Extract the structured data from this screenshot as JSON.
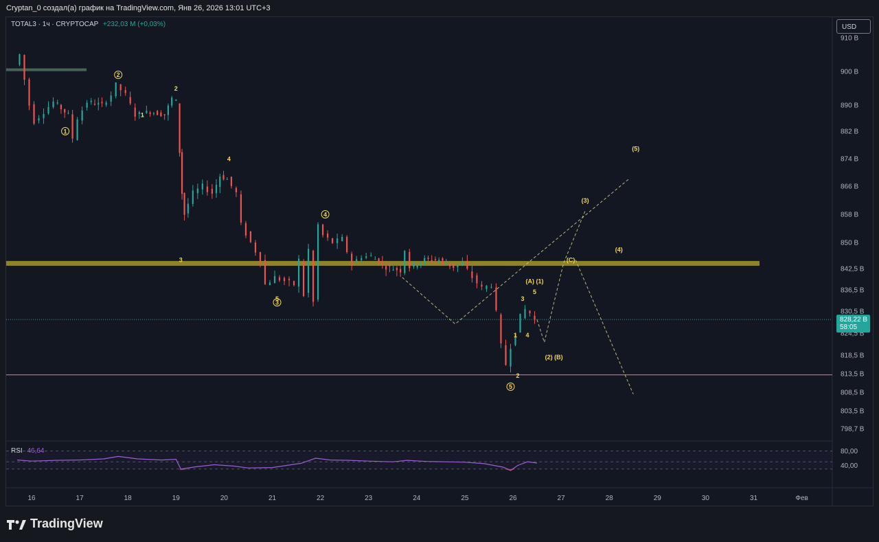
{
  "header": {
    "caption": "Cryptan_0 создал(а) график на TradingView.com, Янв 26, 2026 13:01 UTC+3"
  },
  "symbol": {
    "name": "TOTAL3 · 1ч · CRYPTOCAP",
    "change": "+232,03 M (+0,03%)"
  },
  "currency_button": "USD",
  "rsi": {
    "label": "RSI",
    "value": "46,64",
    "levels": [
      "80,00",
      "40,00"
    ]
  },
  "footer": {
    "brand": "TradingView"
  },
  "colors": {
    "up": "#26a69a",
    "down": "#ef5350",
    "zone": "#a3962d",
    "support": "#e05d6f",
    "rsi": "#9c5fd1",
    "wave_label": "#f0d65a"
  },
  "chart_data": {
    "type": "candlestick",
    "y_unit": "B",
    "y_ticks": [
      "910 B",
      "900 B",
      "890 B",
      "882 B",
      "874 B",
      "866 B",
      "858 B",
      "850 B",
      "842,5 B",
      "836,5 B",
      "830,5 B",
      "824,5 B",
      "818,5 B",
      "813,5 B",
      "808,5 B",
      "803,5 B",
      "798,7 B"
    ],
    "y_tick_values": [
      910,
      900,
      890,
      882,
      874,
      866,
      858,
      850,
      842.5,
      836.5,
      830.5,
      824.5,
      818.5,
      813.5,
      808.5,
      803.5,
      798.7
    ],
    "x_ticks": [
      "16",
      "17",
      "18",
      "19",
      "20",
      "21",
      "22",
      "23",
      "24",
      "25",
      "26",
      "27",
      "28",
      "29",
      "30",
      "31",
      "Фев"
    ],
    "last_price": {
      "value": "828,22 B",
      "countdown": "58:05",
      "price": 828.22
    },
    "resistance_zone": {
      "price": 844
    },
    "support_line": {
      "price": 813.2
    },
    "price_path": [
      [
        15.7,
        902
      ],
      [
        15.8,
        905
      ],
      [
        16.0,
        890
      ],
      [
        16.1,
        885
      ],
      [
        16.3,
        888
      ],
      [
        16.5,
        891
      ],
      [
        16.8,
        887
      ],
      [
        16.9,
        880
      ],
      [
        17.0,
        886
      ],
      [
        17.2,
        891
      ],
      [
        17.5,
        890
      ],
      [
        17.7,
        893
      ],
      [
        17.8,
        896
      ],
      [
        18.0,
        893
      ],
      [
        18.2,
        887
      ],
      [
        18.5,
        888
      ],
      [
        18.8,
        887
      ],
      [
        18.95,
        892
      ],
      [
        19.05,
        891
      ],
      [
        19.1,
        876
      ],
      [
        19.15,
        864
      ],
      [
        19.2,
        858
      ],
      [
        19.4,
        864
      ],
      [
        19.6,
        866
      ],
      [
        19.8,
        864
      ],
      [
        19.95,
        869
      ],
      [
        20.1,
        868
      ],
      [
        20.3,
        864
      ],
      [
        20.4,
        855
      ],
      [
        20.6,
        850
      ],
      [
        20.8,
        845
      ],
      [
        20.9,
        838
      ],
      [
        21.1,
        840
      ],
      [
        21.3,
        839
      ],
      [
        21.5,
        838
      ],
      [
        21.6,
        845
      ],
      [
        21.7,
        835
      ],
      [
        21.8,
        848
      ],
      [
        21.9,
        833
      ],
      [
        22.0,
        855
      ],
      [
        22.1,
        852
      ],
      [
        22.3,
        850
      ],
      [
        22.5,
        851
      ],
      [
        22.7,
        844
      ],
      [
        22.9,
        846
      ],
      [
        23.1,
        846
      ],
      [
        23.4,
        843
      ],
      [
        23.7,
        842
      ],
      [
        23.8,
        848
      ],
      [
        23.9,
        843
      ],
      [
        24.2,
        845
      ],
      [
        24.5,
        845
      ],
      [
        24.8,
        843
      ],
      [
        25.0,
        844
      ],
      [
        25.2,
        840
      ],
      [
        25.4,
        837
      ],
      [
        25.6,
        838
      ],
      [
        25.7,
        830
      ],
      [
        25.8,
        821
      ],
      [
        25.9,
        816
      ],
      [
        26.0,
        821
      ],
      [
        26.1,
        825
      ],
      [
        26.2,
        829
      ],
      [
        26.3,
        831
      ],
      [
        26.4,
        830
      ],
      [
        26.5,
        828.2
      ]
    ],
    "forecast_paths": [
      [
        [
          23.7,
          840
        ],
        [
          24.8,
          827
        ],
        [
          26.3,
          844
        ],
        [
          28.4,
          868
        ]
      ],
      [
        [
          26.5,
          828.2
        ],
        [
          26.65,
          822
        ],
        [
          27.05,
          844
        ],
        [
          27.5,
          859
        ]
      ],
      [
        [
          27.3,
          845
        ],
        [
          28.5,
          808
        ]
      ]
    ],
    "wave_labels": [
      {
        "text": "1",
        "x": 16.7,
        "price": 882,
        "circled": true
      },
      {
        "text": "2",
        "x": 17.8,
        "price": 899,
        "circled": true
      },
      {
        "text": "3",
        "x": 21.1,
        "price": 833,
        "circled": true
      },
      {
        "text": "4",
        "x": 22.1,
        "price": 858,
        "circled": true
      },
      {
        "text": "5",
        "x": 25.95,
        "price": 810,
        "circled": true
      },
      {
        "text": "1",
        "x": 18.3,
        "price": 887,
        "circled": false
      },
      {
        "text": "2",
        "x": 19.0,
        "price": 895,
        "circled": false
      },
      {
        "text": "3",
        "x": 19.1,
        "price": 845,
        "circled": false
      },
      {
        "text": "4",
        "x": 20.1,
        "price": 874,
        "circled": false
      },
      {
        "text": "5",
        "x": 21.1,
        "price": 834,
        "circled": false
      },
      {
        "text": "1",
        "x": 26.05,
        "price": 824,
        "circled": false
      },
      {
        "text": "2",
        "x": 26.1,
        "price": 813,
        "circled": false
      },
      {
        "text": "3",
        "x": 26.2,
        "price": 834,
        "circled": false
      },
      {
        "text": "4",
        "x": 26.3,
        "price": 824,
        "circled": false
      },
      {
        "text": "5",
        "x": 26.45,
        "price": 836,
        "circled": false
      },
      {
        "text": "(A) (1)",
        "x": 26.45,
        "price": 839,
        "circled": false
      },
      {
        "text": "(2) (B)",
        "x": 26.85,
        "price": 818,
        "circled": false
      },
      {
        "text": "(C)",
        "x": 27.2,
        "price": 845,
        "circled": false
      },
      {
        "text": "(3)",
        "x": 27.5,
        "price": 862,
        "circled": false
      },
      {
        "text": "(4)",
        "x": 28.2,
        "price": 848,
        "circled": false
      },
      {
        "text": "(5)",
        "x": 28.55,
        "price": 877,
        "circled": false
      }
    ],
    "rsi_path": [
      [
        15.7,
        55
      ],
      [
        16.0,
        52
      ],
      [
        16.5,
        54
      ],
      [
        17.0,
        55
      ],
      [
        17.5,
        58
      ],
      [
        17.8,
        65
      ],
      [
        18.2,
        58
      ],
      [
        18.7,
        55
      ],
      [
        19.0,
        57
      ],
      [
        19.1,
        30
      ],
      [
        19.4,
        36
      ],
      [
        19.8,
        42
      ],
      [
        20.2,
        38
      ],
      [
        20.5,
        33
      ],
      [
        21.0,
        34
      ],
      [
        21.3,
        40
      ],
      [
        21.6,
        46
      ],
      [
        21.9,
        60
      ],
      [
        22.2,
        55
      ],
      [
        22.6,
        54
      ],
      [
        23.0,
        52
      ],
      [
        23.5,
        50
      ],
      [
        23.8,
        54
      ],
      [
        24.2,
        51
      ],
      [
        24.6,
        50
      ],
      [
        25.0,
        49
      ],
      [
        25.4,
        45
      ],
      [
        25.8,
        35
      ],
      [
        25.95,
        26
      ],
      [
        26.1,
        40
      ],
      [
        26.3,
        50
      ],
      [
        26.5,
        46.64
      ]
    ]
  }
}
